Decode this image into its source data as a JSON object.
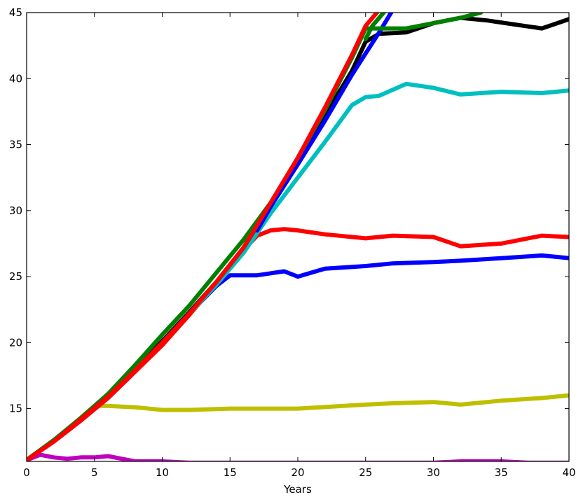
{
  "chart_data": {
    "type": "line",
    "title": "",
    "xlabel": "Years",
    "ylabel": "",
    "xlim": [
      0,
      40
    ],
    "ylim": [
      11,
      45
    ],
    "xticks": [
      0,
      5,
      10,
      15,
      20,
      25,
      30,
      35,
      40
    ],
    "yticks": [
      15,
      20,
      25,
      30,
      35,
      40,
      45
    ],
    "grid": false,
    "legend": "none",
    "series": [
      {
        "color": "#bf00bf",
        "x": [
          0,
          1,
          2,
          3,
          4,
          5,
          6,
          7,
          8,
          10,
          12,
          15,
          20,
          25,
          30,
          32,
          35,
          37,
          40
        ],
        "y": [
          11.1,
          11.5,
          11.3,
          11.2,
          11.3,
          11.3,
          11.4,
          11.2,
          11.0,
          11.0,
          10.9,
          10.9,
          10.9,
          10.9,
          10.9,
          11.0,
          11.0,
          10.9,
          10.9
        ]
      },
      {
        "color": "#bfbf00",
        "x": [
          0,
          2,
          4,
          5,
          6,
          8,
          10,
          12,
          15,
          20,
          25,
          27,
          30,
          32,
          35,
          38,
          40
        ],
        "y": [
          11.1,
          12.6,
          14.2,
          15.2,
          15.2,
          15.1,
          14.9,
          14.9,
          15.0,
          15.0,
          15.3,
          15.4,
          15.5,
          15.3,
          15.6,
          15.8,
          16.0
        ]
      },
      {
        "color": "#0000ff",
        "x": [
          0,
          2,
          4,
          6,
          8,
          10,
          12,
          14,
          15,
          17,
          19,
          20,
          22,
          25,
          27,
          30,
          32,
          35,
          38,
          40
        ],
        "y": [
          11.1,
          12.5,
          14.1,
          15.8,
          17.8,
          20.0,
          22.2,
          24.3,
          25.1,
          25.1,
          25.4,
          25.0,
          25.6,
          25.8,
          26.0,
          26.1,
          26.2,
          26.4,
          26.6,
          26.4
        ]
      },
      {
        "color": "#ff0000",
        "x": [
          0,
          2,
          4,
          6,
          8,
          10,
          12,
          14,
          16,
          17,
          18,
          19,
          20,
          22,
          25,
          27,
          30,
          32,
          35,
          38,
          40
        ],
        "y": [
          11.1,
          12.5,
          14.1,
          15.8,
          17.8,
          19.8,
          22.1,
          24.5,
          27.0,
          28.1,
          28.5,
          28.6,
          28.5,
          28.2,
          27.9,
          28.1,
          28.0,
          27.3,
          27.5,
          28.1,
          28.0
        ]
      },
      {
        "color": "#00bfbf",
        "x": [
          0,
          2,
          4,
          6,
          8,
          10,
          12,
          14,
          16,
          18,
          20,
          22,
          24,
          25,
          26,
          28,
          30,
          32,
          35,
          38,
          40
        ],
        "y": [
          11.1,
          12.6,
          14.2,
          15.9,
          17.9,
          20.1,
          22.2,
          24.4,
          26.8,
          29.8,
          32.5,
          35.2,
          38.0,
          38.6,
          38.7,
          39.6,
          39.3,
          38.8,
          39.0,
          38.9,
          39.1
        ]
      },
      {
        "color": "#000000",
        "x": [
          0,
          2,
          4,
          6,
          8,
          10,
          12,
          14,
          16,
          18,
          20,
          22,
          24,
          25,
          26,
          28,
          30,
          32,
          34,
          36,
          38,
          40
        ],
        "y": [
          11.1,
          12.6,
          14.2,
          16.0,
          18.0,
          20.1,
          22.3,
          24.6,
          27.2,
          30.5,
          33.8,
          37.2,
          40.6,
          42.8,
          43.4,
          43.5,
          44.2,
          44.6,
          44.4,
          44.1,
          43.8,
          44.5
        ]
      },
      {
        "color": "#0000ff",
        "x": [
          17,
          18,
          20,
          22,
          24,
          26,
          27
        ],
        "y": [
          28.5,
          30.3,
          33.5,
          36.8,
          40.3,
          43.5,
          45.2
        ]
      },
      {
        "color": "#008000",
        "x": [
          0,
          2,
          4,
          6,
          8,
          10,
          12,
          14,
          16,
          18,
          20,
          22,
          23,
          24,
          25,
          26,
          28,
          30,
          32,
          33.5
        ],
        "y": [
          11.1,
          12.6,
          14.3,
          16.1,
          18.3,
          20.6,
          22.8,
          25.3,
          27.8,
          30.6,
          34.0,
          37.6,
          39.6,
          41.6,
          43.8,
          43.8,
          43.8,
          44.2,
          44.6,
          45.0
        ]
      },
      {
        "color": "#008000",
        "x": [
          25,
          25.5,
          26,
          26.5
        ],
        "y": [
          43.0,
          44.0,
          44.6,
          45.2
        ]
      },
      {
        "color": "#ff0000",
        "x": [
          0,
          2,
          4,
          6,
          8,
          10,
          12,
          14,
          16,
          18,
          20,
          22,
          24,
          25,
          26
        ],
        "y": [
          11.1,
          12.5,
          14.2,
          15.9,
          17.9,
          20.0,
          22.2,
          24.6,
          27.2,
          30.6,
          34.0,
          37.8,
          41.8,
          44.0,
          45.2
        ]
      }
    ]
  }
}
